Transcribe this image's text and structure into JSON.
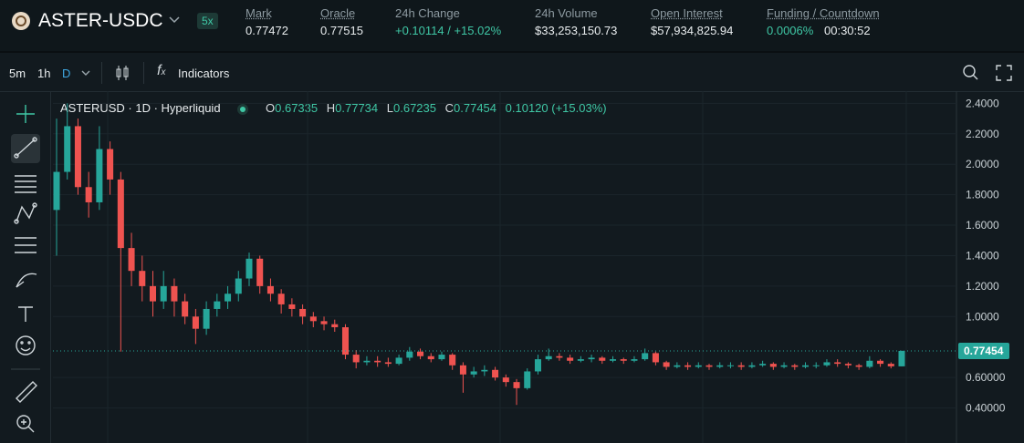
{
  "header": {
    "symbol": "ASTER-USDC",
    "leverage": "5x",
    "stats": [
      {
        "label": "Mark",
        "value": "0.77472"
      },
      {
        "label": "Oracle",
        "value": "0.77515"
      },
      {
        "label": "24h Change",
        "value": "+0.10114 / +15.02%"
      },
      {
        "label": "24h Volume",
        "value": "$33,253,150.73"
      },
      {
        "label": "Open Interest",
        "value": "$57,934,825.94"
      },
      {
        "label": "Funding / Countdown",
        "value": "0.0006%",
        "countdown": "00:30:52"
      }
    ]
  },
  "toolbar": {
    "intervals": [
      "5m",
      "1h",
      "D"
    ],
    "indicators": "Indicators"
  },
  "legend": {
    "title": "ASTERUSD · 1D · Hyperliquid",
    "items": [
      {
        "label": "O",
        "value": "0.67335"
      },
      {
        "label": "H",
        "value": "0.77734"
      },
      {
        "label": "L",
        "value": "0.67235"
      },
      {
        "label": "C",
        "value": "0.77454"
      }
    ],
    "change": "0.10120 (+15.03%)"
  },
  "chart_data": {
    "type": "candlestick",
    "up_color": "#26a69a",
    "down_color": "#ef5350",
    "ylim": [
      0.17,
      2.48
    ],
    "yticks": [
      {
        "value": 0.4,
        "label": "0.40000"
      },
      {
        "value": 0.6,
        "label": "0.60000"
      },
      {
        "value": 1.0,
        "label": "1.0000"
      },
      {
        "value": 1.2,
        "label": "1.2000"
      },
      {
        "value": 1.4,
        "label": "1.4000"
      },
      {
        "value": 1.6,
        "label": "1.6000"
      },
      {
        "value": 1.8,
        "label": "1.8000"
      },
      {
        "value": 2.0,
        "label": "2.0000"
      },
      {
        "value": 2.2,
        "label": "2.2000"
      },
      {
        "value": 2.4,
        "label": "2.4000"
      }
    ],
    "last_price": 0.77454,
    "open": [
      1.7,
      1.95,
      2.25,
      1.85,
      1.75,
      2.1,
      1.9,
      1.45,
      1.3,
      1.2,
      1.1,
      1.2,
      1.1,
      1.0,
      0.92,
      1.05,
      1.1,
      1.15,
      1.25,
      1.38,
      1.2,
      1.15,
      1.08,
      1.05,
      1.0,
      0.97,
      0.95,
      0.93,
      0.75,
      0.7,
      0.71,
      0.7,
      0.69,
      0.73,
      0.77,
      0.74,
      0.72,
      0.75,
      0.68,
      0.62,
      0.64,
      0.65,
      0.6,
      0.57,
      0.53,
      0.64,
      0.72,
      0.74,
      0.73,
      0.71,
      0.72,
      0.73,
      0.71,
      0.72,
      0.71,
      0.72,
      0.76,
      0.7,
      0.67,
      0.68,
      0.67,
      0.68,
      0.67,
      0.68,
      0.68,
      0.67,
      0.68,
      0.69,
      0.67,
      0.68,
      0.67,
      0.68,
      0.68,
      0.7,
      0.69,
      0.68,
      0.67,
      0.71,
      0.69,
      0.67335
    ],
    "high": [
      2.3,
      2.4,
      2.3,
      1.95,
      2.25,
      2.15,
      1.95,
      1.55,
      1.4,
      1.3,
      1.3,
      1.25,
      1.15,
      1.05,
      1.1,
      1.15,
      1.2,
      1.3,
      1.42,
      1.4,
      1.25,
      1.18,
      1.12,
      1.08,
      1.03,
      1.0,
      0.98,
      0.95,
      0.78,
      0.74,
      0.74,
      0.73,
      0.75,
      0.8,
      0.79,
      0.76,
      0.77,
      0.76,
      0.7,
      0.67,
      0.68,
      0.67,
      0.62,
      0.59,
      0.66,
      0.75,
      0.79,
      0.76,
      0.75,
      0.74,
      0.75,
      0.74,
      0.74,
      0.73,
      0.74,
      0.79,
      0.77,
      0.71,
      0.7,
      0.7,
      0.7,
      0.69,
      0.7,
      0.7,
      0.7,
      0.7,
      0.71,
      0.7,
      0.7,
      0.69,
      0.7,
      0.7,
      0.72,
      0.72,
      0.7,
      0.69,
      0.74,
      0.72,
      0.7,
      0.77734
    ],
    "low": [
      1.4,
      1.9,
      1.8,
      1.65,
      1.7,
      1.8,
      0.77,
      1.2,
      1.1,
      1.0,
      1.05,
      1.0,
      0.95,
      0.82,
      0.88,
      1.0,
      1.05,
      1.1,
      1.2,
      1.15,
      1.1,
      1.02,
      1.0,
      0.95,
      0.93,
      0.91,
      0.9,
      0.72,
      0.66,
      0.68,
      0.67,
      0.67,
      0.68,
      0.71,
      0.72,
      0.7,
      0.71,
      0.65,
      0.5,
      0.6,
      0.61,
      0.58,
      0.54,
      0.42,
      0.52,
      0.62,
      0.71,
      0.71,
      0.69,
      0.7,
      0.7,
      0.69,
      0.7,
      0.69,
      0.7,
      0.71,
      0.68,
      0.65,
      0.66,
      0.65,
      0.66,
      0.65,
      0.66,
      0.66,
      0.65,
      0.66,
      0.67,
      0.65,
      0.66,
      0.65,
      0.66,
      0.66,
      0.67,
      0.67,
      0.66,
      0.65,
      0.66,
      0.67,
      0.66,
      0.67235
    ],
    "close": [
      1.95,
      2.25,
      1.85,
      1.75,
      2.1,
      1.9,
      1.45,
      1.3,
      1.2,
      1.1,
      1.2,
      1.1,
      1.0,
      0.92,
      1.05,
      1.1,
      1.15,
      1.25,
      1.38,
      1.2,
      1.15,
      1.08,
      1.05,
      1.0,
      0.97,
      0.95,
      0.93,
      0.75,
      0.7,
      0.71,
      0.7,
      0.69,
      0.73,
      0.77,
      0.74,
      0.72,
      0.75,
      0.68,
      0.62,
      0.64,
      0.65,
      0.6,
      0.57,
      0.53,
      0.64,
      0.72,
      0.74,
      0.73,
      0.71,
      0.72,
      0.73,
      0.71,
      0.72,
      0.71,
      0.72,
      0.76,
      0.7,
      0.67,
      0.68,
      0.67,
      0.68,
      0.67,
      0.68,
      0.68,
      0.67,
      0.68,
      0.69,
      0.67,
      0.68,
      0.67,
      0.68,
      0.68,
      0.7,
      0.69,
      0.68,
      0.67,
      0.71,
      0.69,
      0.67335,
      0.77454
    ]
  }
}
